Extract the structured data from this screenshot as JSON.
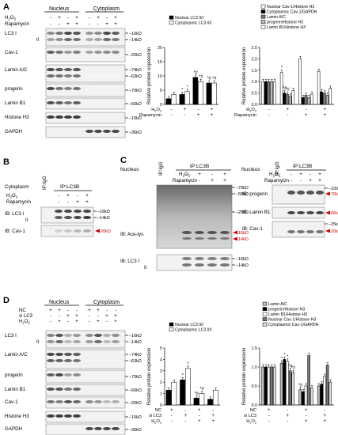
{
  "panels": {
    "A": {
      "letter": "A",
      "groups": [
        "Nucleus",
        "Cytoplasm"
      ],
      "treat_labels": [
        "H2O2",
        "Rapamycin"
      ],
      "lane_signs": [
        [
          "-",
          "+",
          "-",
          "+",
          "-",
          "+",
          "-",
          "+"
        ],
        [
          "-",
          "-",
          "+",
          "+",
          "-",
          "-",
          "+",
          "+"
        ]
      ],
      "blots": [
        {
          "label": "LC3 I",
          "sublabel": "II",
          "mw": [
            "16kD",
            "14kD"
          ]
        },
        {
          "label": "Cav-1",
          "mw": [
            "20kD"
          ]
        },
        {
          "label": "Lamin A/C",
          "mw": [
            "74kD",
            "63kD"
          ]
        },
        {
          "label": "progerin",
          "mw": [
            "70kD"
          ]
        },
        {
          "label": "Lamin B1",
          "mw": [
            "66kD"
          ]
        },
        {
          "label": "Histone H3",
          "mw": [
            "15kD"
          ]
        },
        {
          "label": "GAPDH",
          "mw": [
            "36kD"
          ]
        }
      ],
      "ylabel": "Relative protein expression",
      "x_signs_H2O2": [
        "-",
        "+",
        "-",
        "+"
      ],
      "x_signs_Rapa": [
        "-",
        "-",
        "+",
        "+"
      ]
    },
    "B": {
      "letter": "B",
      "context": "Cytoplasm",
      "ip_igg": "IP:IgG",
      "ip": "IP:LC3B",
      "treat_labels": [
        "H2O2",
        "Rapamycin"
      ],
      "lane_signs": [
        [
          "-",
          "+",
          "-",
          "+"
        ],
        [
          "-",
          "-",
          "+",
          "+"
        ]
      ],
      "blots": [
        {
          "label": "IB: LC3 I",
          "sublabel": "II",
          "mw": [
            "16kD",
            "14kD"
          ]
        },
        {
          "label": "IB: Cav-1",
          "mw": [
            "20kD"
          ]
        }
      ]
    },
    "C": {
      "letter": "C",
      "context": "Nucleus",
      "ip_igg": "IP:IgG",
      "ip": "IP:LC3B",
      "treat_labels": [
        "H2O2",
        "Rapamycin"
      ],
      "lane_signs": [
        [
          "-",
          "+",
          "-",
          "+"
        ],
        [
          "-",
          "-",
          "+",
          "+"
        ]
      ],
      "left_blots": [
        {
          "label": "IB: Ace-lys",
          "mw": [
            "70kD",
            "55kD",
            "25kD",
            "16kD",
            "14kD"
          ]
        },
        {
          "label": "IB: LC3 I",
          "sublabel": "II",
          "mw": [
            "16kD",
            "14kD"
          ]
        }
      ],
      "right_blots": [
        {
          "label": "IB: progerin",
          "mw": [
            "100kD",
            "70kD"
          ]
        },
        {
          "label": "IB: Lamin B1",
          "mw": [
            "66kD"
          ]
        },
        {
          "label": "IB: Cav-1",
          "mw": [
            "25kD",
            "20kD"
          ]
        }
      ]
    },
    "D": {
      "letter": "D",
      "groups": [
        "Nucleus",
        "Cytoplasm"
      ],
      "treat_labels": [
        "NC",
        "si LC3",
        "H2O2"
      ],
      "lane_signs": [
        [
          "+",
          "+",
          "-",
          "-",
          "+",
          "+",
          "-",
          "-"
        ],
        [
          "-",
          "-",
          "+",
          "+",
          "-",
          "-",
          "+",
          "+"
        ],
        [
          "-",
          "+",
          "-",
          "+",
          "-",
          "+",
          "-",
          "+"
        ]
      ],
      "blots": [
        {
          "label": "LC3 I",
          "sublabel": "II",
          "mw": [
            "16kD",
            "14kD"
          ]
        },
        {
          "label": "Lamin A/C",
          "mw": [
            "74kD",
            "63kD"
          ]
        },
        {
          "label": "progerin",
          "mw": [
            "70kD"
          ]
        },
        {
          "label": "Lamin B1",
          "mw": [
            "66kD"
          ]
        },
        {
          "label": "Cav-1",
          "mw": [
            "20kD"
          ]
        },
        {
          "label": "Histone H3",
          "mw": [
            "15kD"
          ]
        },
        {
          "label": "GAPDH",
          "mw": [
            "36kD"
          ]
        }
      ],
      "ylabel": "Relative protein expression",
      "x_signs_NC": [
        "+",
        "-",
        "+",
        "-"
      ],
      "x_signs_si": [
        "-",
        "+",
        "-",
        "+"
      ],
      "x_signs_H2O2": [
        "-",
        "-",
        "+",
        "+"
      ]
    }
  },
  "chart_data": [
    {
      "id": "A1",
      "type": "bar",
      "categories": [
        "1",
        "2",
        "3",
        "4"
      ],
      "ylim": [
        0,
        20
      ],
      "yticks": [
        0,
        5,
        10,
        15,
        20
      ],
      "series": [
        {
          "name": "Nuclear LC3 II/I",
          "values": [
            2,
            3.5,
            9.5,
            7.5
          ],
          "color": "#000000"
        },
        {
          "name": "Cytoplasmic LC3 II/I",
          "values": [
            3.5,
            4.5,
            8,
            7.5
          ],
          "color": "#ffffff"
        }
      ],
      "annotations": [
        "*",
        "*",
        "*#",
        "*#",
        "*#",
        "*#"
      ]
    },
    {
      "id": "A2",
      "type": "bar",
      "categories": [
        "1",
        "2",
        "3",
        "4"
      ],
      "ylim": [
        0,
        2.5
      ],
      "yticks": [
        0.0,
        0.5,
        1.0,
        1.5,
        2.0,
        2.5
      ],
      "series": [
        {
          "name": "Nuclear Cav-1/Histone H3",
          "values": [
            1.0,
            1.4,
            2.0,
            1.45
          ],
          "color": "#ffffff"
        },
        {
          "name": "Cytoplasmic Cav-1/GAPDH",
          "values": [
            1.0,
            0.5,
            0.3,
            0.55
          ],
          "color": "#000000"
        },
        {
          "name": "Lamin A/C",
          "values": [
            1.0,
            0.45,
            0.4,
            0.5
          ],
          "color": "#777777"
        },
        {
          "name": "progerin/Histone H3",
          "values": [
            1.0,
            0.35,
            0.3,
            0.4
          ],
          "color": "#bbbbbb"
        },
        {
          "name": "Lamin B1/Histone H3",
          "values": [
            1.0,
            0.6,
            0.45,
            0.7
          ],
          "color": "#ffffff"
        }
      ],
      "annotations": [
        "*",
        "*#",
        "*#"
      ]
    },
    {
      "id": "D1",
      "type": "bar",
      "categories": [
        "1",
        "2",
        "3",
        "4"
      ],
      "ylim": [
        0,
        5
      ],
      "yticks": [
        0,
        1,
        2,
        3,
        4,
        5
      ],
      "series": [
        {
          "name": "Nuclear LC3 II/I",
          "values": [
            1.3,
            2.2,
            0.6,
            0.5
          ],
          "color": "#000000"
        },
        {
          "name": "Cytoplasmic LC3 II/I",
          "values": [
            2.0,
            3.2,
            1.0,
            1.3
          ],
          "color": "#ffffff"
        }
      ],
      "annotations": [
        "*",
        "*",
        "*#",
        "*#"
      ]
    },
    {
      "id": "D2",
      "type": "bar",
      "categories": [
        "1",
        "2",
        "3",
        "4"
      ],
      "ylim": [
        0,
        1.5
      ],
      "yticks": [
        0.0,
        0.5,
        1.0,
        1.5
      ],
      "series": [
        {
          "name": "Lamin A/C",
          "values": [
            1.0,
            1.1,
            0.4,
            0.5
          ],
          "color": "#bbbbbb"
        },
        {
          "name": "progerin/Histone H3",
          "values": [
            1.0,
            1.2,
            0.35,
            0.55
          ],
          "color": "#000000"
        },
        {
          "name": "Lamin B1/Histone H3",
          "values": [
            1.0,
            1.15,
            0.5,
            0.75
          ],
          "color": "#ffffff"
        },
        {
          "name": "Nuclear Cav-1/Histone H3",
          "values": [
            1.0,
            0.9,
            1.3,
            1.05
          ],
          "color": "#777777"
        },
        {
          "name": "Cytoplasmic Cav-1/GAPDH",
          "values": [
            1.0,
            0.85,
            0.45,
            0.6
          ],
          "color": "#dddddd"
        }
      ],
      "annotations": [
        "*",
        "*",
        "*",
        "*#",
        "*#",
        "*#"
      ]
    }
  ]
}
